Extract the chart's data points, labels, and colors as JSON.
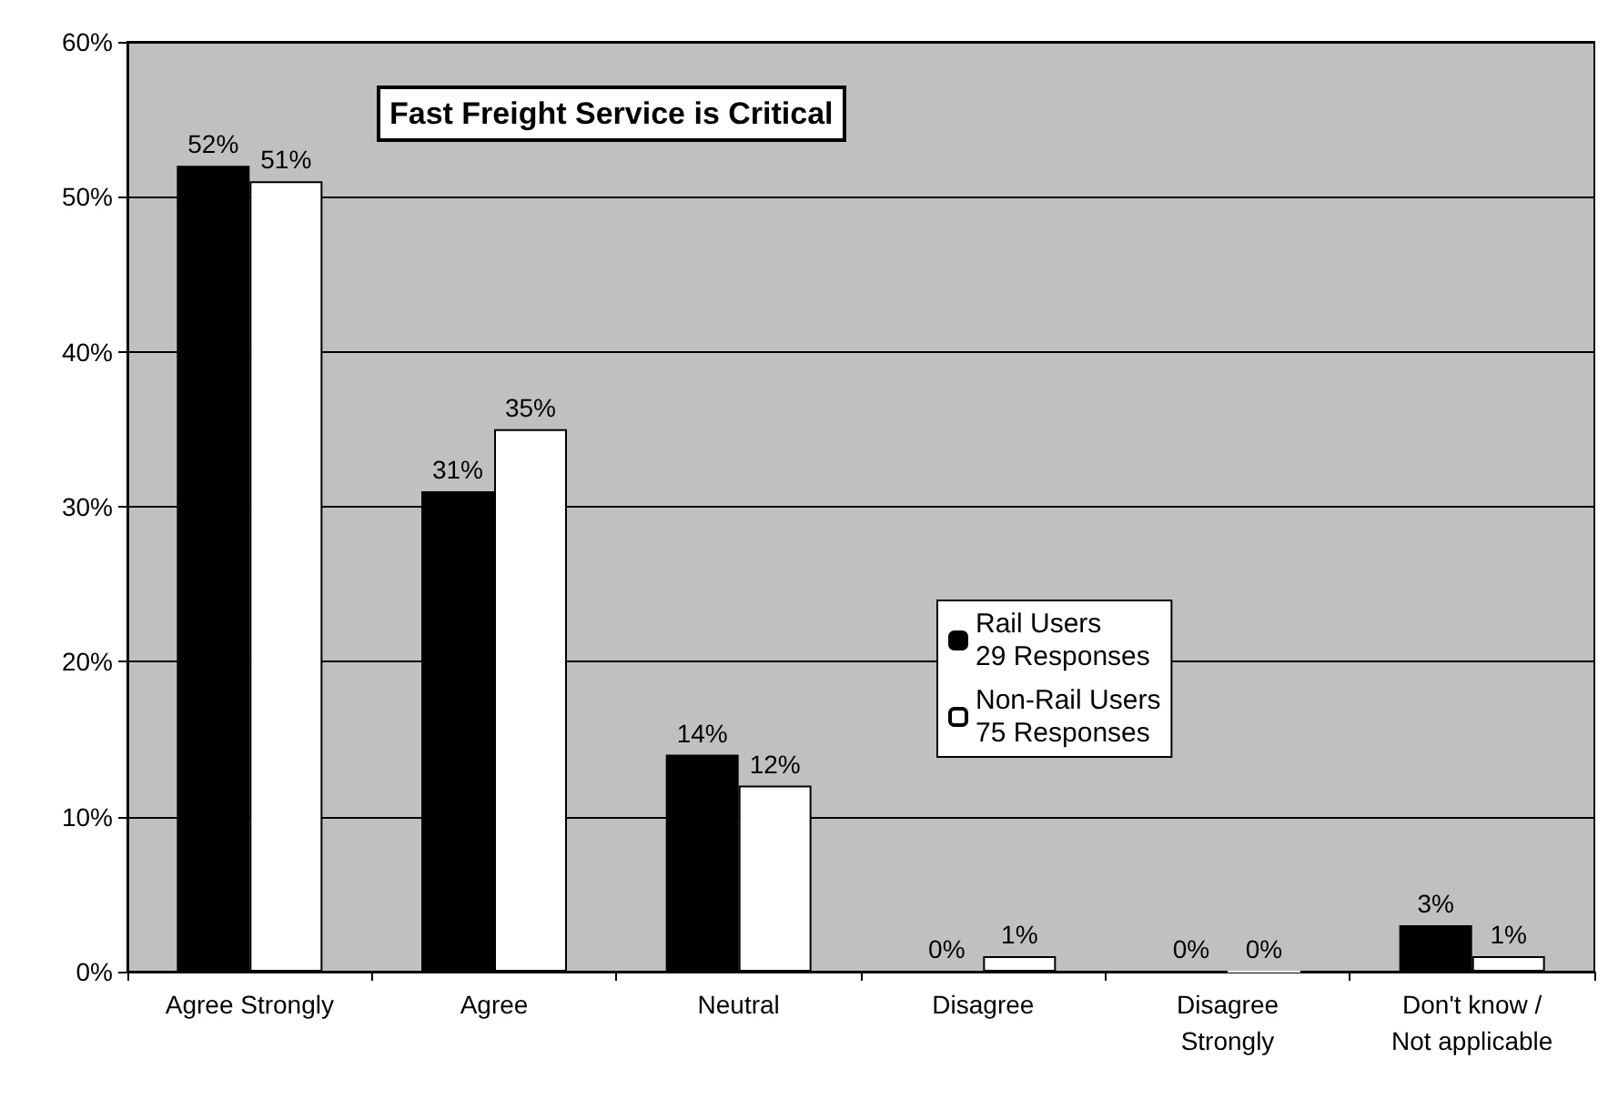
{
  "chart_data": {
    "type": "bar",
    "title": "Fast Freight Service is Critical",
    "categories": [
      "Agree Strongly",
      "Agree",
      "Neutral",
      "Disagree",
      "Disagree\nStrongly",
      "Don't know /\nNot applicable"
    ],
    "series": [
      {
        "name": "Rail Users\n29 Responses",
        "color": "#000000",
        "values": [
          52,
          31,
          14,
          0,
          0,
          3
        ],
        "value_labels": [
          "52%",
          "31%",
          "14%",
          "0%",
          "0%",
          "3%"
        ]
      },
      {
        "name": "Non-Rail Users\n75 Responses",
        "color": "#ffffff",
        "values": [
          51,
          35,
          12,
          1,
          0,
          1
        ],
        "value_labels": [
          "51%",
          "35%",
          "12%",
          "1%",
          "0%",
          "1%"
        ]
      }
    ],
    "ylim": [
      0,
      60
    ],
    "yticks": [
      {
        "value": 0,
        "label": "0%"
      },
      {
        "value": 10,
        "label": "10%"
      },
      {
        "value": 20,
        "label": "20%"
      },
      {
        "value": 30,
        "label": "30%"
      },
      {
        "value": 40,
        "label": "40%"
      },
      {
        "value": 50,
        "label": "50%"
      },
      {
        "value": 60,
        "label": "60%"
      }
    ],
    "grid": "y",
    "legend": "center"
  }
}
